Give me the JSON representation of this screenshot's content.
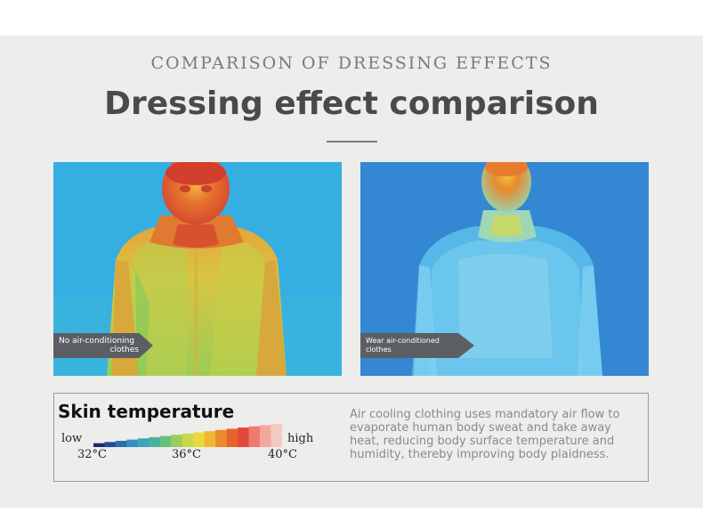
{
  "header": {
    "eyebrow": "COMPARISON OF DRESSING EFFECTS",
    "title": "Dressing effect comparison"
  },
  "left_image": {
    "tag_line1": "No air-conditioning",
    "tag_line2": "clothes"
  },
  "right_image": {
    "tag_line1": "Wear air-conditioned",
    "tag_line2": "clothes"
  },
  "legend": {
    "title": "Skin temperature",
    "low_label": "low",
    "high_label": "high",
    "ticks": [
      "32°C",
      "36°C",
      "40°C"
    ],
    "colors": [
      "#1b2a6b",
      "#1f4c96",
      "#2a6fb0",
      "#3a8fc0",
      "#3fa6b8",
      "#49b39a",
      "#69c07c",
      "#9ccd5c",
      "#c8d84a",
      "#e9d83f",
      "#f0b733",
      "#ec8a2a",
      "#e8632b",
      "#e4473a",
      "#ee7b72",
      "#f4a7a1",
      "#f7c9c5"
    ]
  },
  "description": "Air cooling clothing uses mandatory air flow to evaporate human body sweat and take away heat, reducing body surface temperature and humidity, thereby improving body plaidness."
}
